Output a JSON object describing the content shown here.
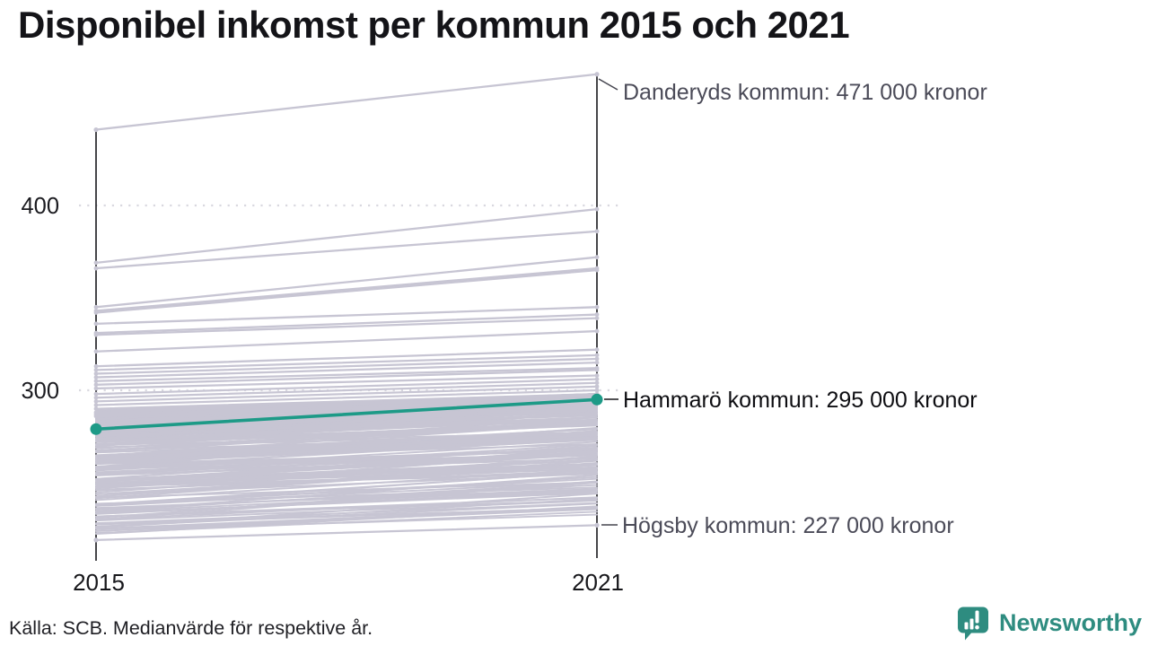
{
  "title": "Disponibel inkomst per kommun 2015 och 2021",
  "footer": {
    "source": "Källa: SCB. Medianvärde för respektive år.",
    "logo_text": "Newsworthy"
  },
  "colors": {
    "background": "#ffffff",
    "title_text": "#141418",
    "line_gray": "#c7c5d3",
    "highlight_teal": "#1d9a87",
    "logo_teal": "#2e8c80",
    "annotation_gray": "#4b4b58",
    "annotation_dark": "#0e0e12",
    "axis_black": "#17171b",
    "gridline_gray": "#d9d8df"
  },
  "chart_data": {
    "type": "line",
    "variant": "slopegraph",
    "title": "Disponibel inkomst per kommun 2015 och 2021",
    "xlabel": "",
    "ylabel": "",
    "x_categories": [
      "2015",
      "2021"
    ],
    "y_ticks": [
      {
        "label": "400",
        "value": 400
      },
      {
        "label": "300",
        "value": 300
      }
    ],
    "ylim": [
      215,
      480
    ],
    "grid": "dotted horizontal lines at y ticks, legend none",
    "unit": "tusen kronor (medianvärde per kommun)",
    "highlight": {
      "name": "Hammarö kommun",
      "values": [
        279,
        295
      ],
      "label": "Hammarö kommun: 295 000 kronor"
    },
    "labeled_lines": [
      {
        "name": "Danderyds kommun",
        "values": [
          441,
          471
        ],
        "label": "Danderyds kommun: 471 000 kronor"
      },
      {
        "name": "Högsby kommun",
        "values": [
          219,
          227
        ],
        "label": "Högsby kommun: 227 000 kronor"
      }
    ],
    "background_lines": {
      "description": "Approx. 290 Swedish municipalities, unlabeled gray slopes from 2015 to 2021; values estimated from axis (thousand kronor).",
      "distinct_pairs": [
        [
          369,
          398
        ],
        [
          366,
          386
        ],
        [
          345,
          372
        ],
        [
          343,
          366
        ],
        [
          342,
          365
        ],
        [
          336,
          345
        ],
        [
          331,
          341
        ],
        [
          330,
          339
        ],
        [
          321,
          332
        ],
        [
          313,
          322
        ],
        [
          311,
          319
        ],
        [
          309,
          317
        ],
        [
          307,
          315
        ],
        [
          305,
          312
        ],
        [
          303,
          311
        ],
        [
          301,
          308
        ],
        [
          298,
          306
        ],
        [
          296,
          304
        ],
        [
          294,
          302
        ],
        [
          292,
          300
        ],
        [
          290,
          298
        ],
        [
          288,
          297
        ],
        [
          287,
          295
        ],
        [
          286,
          294
        ]
      ],
      "band": {
        "count": 262,
        "seed": 11,
        "v2015_min": 222,
        "v2015_max": 289,
        "rise_min": 7,
        "rise_max": 20,
        "v2021_min": 228,
        "v2021_max": 298
      }
    }
  }
}
